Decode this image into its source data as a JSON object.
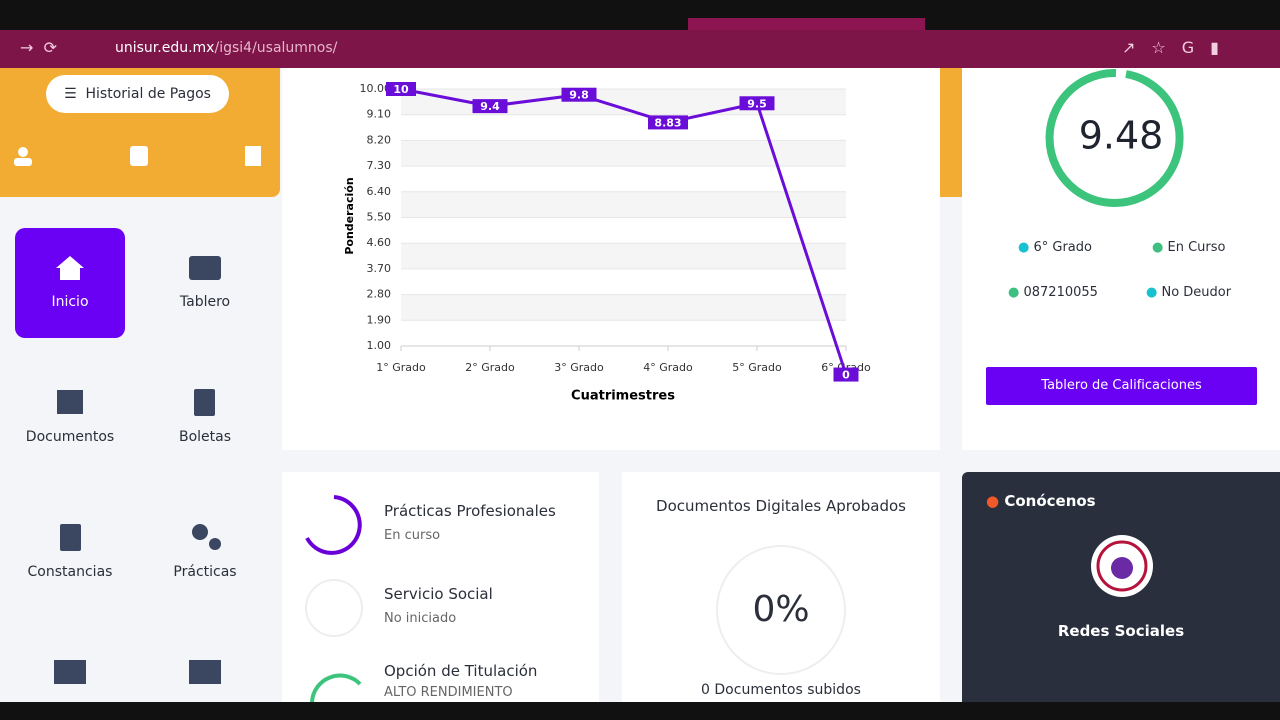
{
  "browser": {
    "url_domain": "unisur.edu.mx",
    "url_path": "/igsi4/usalumnos/"
  },
  "sidebar": {
    "button": "Historial de Pagos",
    "menu": [
      "Inicio",
      "Tablero",
      "Documentos",
      "Boletas",
      "Constancias",
      "Prácticas"
    ]
  },
  "chart_data": {
    "type": "line",
    "ylabel": "Ponderación",
    "xlabel": "Cuatrimestres",
    "categories": [
      "1° Grado",
      "2° Grado",
      "3° Grado",
      "4° Grado",
      "5° Grado",
      "6° Grado"
    ],
    "values": [
      10,
      9.4,
      9.8,
      8.83,
      9.5,
      0
    ],
    "color": "#6a0dd8",
    "ylim": [
      1,
      10
    ],
    "yticks": [
      {
        "value": 1,
        "label": "1.00"
      },
      {
        "value": 1.9,
        "label": "1.90"
      },
      {
        "value": 2.8,
        "label": "2.80"
      },
      {
        "value": 3.7,
        "label": "3.70"
      },
      {
        "value": 4.6,
        "label": "4.60"
      },
      {
        "value": 5.5,
        "label": "5.50"
      },
      {
        "value": 6.4,
        "label": "6.40"
      },
      {
        "value": 7.3,
        "label": "7.30"
      },
      {
        "value": 8.2,
        "label": "8.20"
      },
      {
        "value": 9.1,
        "label": "9.10"
      },
      {
        "value": 10,
        "label": "10.00"
      }
    ],
    "grid": true
  },
  "summary": {
    "grade": "9.48",
    "items": [
      "6° Grado",
      "En Curso",
      "087210055",
      "No Deudor"
    ],
    "button": "Tablero de Calificaciones"
  },
  "progress": [
    {
      "title": "Prácticas Profesionales",
      "status": "En curso"
    },
    {
      "title": "Servicio Social",
      "status": "No iniciado"
    },
    {
      "title": "Opción de Titulación",
      "status": "ALTO RENDIMIENTO"
    }
  ],
  "documents": {
    "title": "Documentos Digitales Aprobados",
    "percent": "0%",
    "caption": "0 Documentos subidos"
  },
  "about": {
    "title": "Conócenos",
    "caption": "Redes Sociales"
  }
}
